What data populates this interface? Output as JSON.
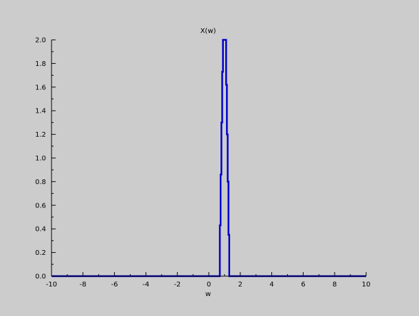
{
  "chart_data": {
    "type": "line",
    "title": "X(w)",
    "xlabel": "w",
    "ylabel": "",
    "xlim": [
      -10,
      10
    ],
    "ylim": [
      0,
      2
    ],
    "x_ticks": [
      "-10",
      "-8",
      "-6",
      "-4",
      "-2",
      "0",
      "2",
      "4",
      "6",
      "8",
      "10"
    ],
    "y_ticks": [
      "0.0",
      "0.2",
      "0.4",
      "0.6",
      "0.8",
      "1.0",
      "1.2",
      "1.4",
      "1.6",
      "1.8",
      "2.0"
    ],
    "grid": false,
    "legend": "none",
    "series": [
      {
        "color": "#0000cc",
        "x": [
          -10,
          0.7,
          0.7,
          0.75,
          0.75,
          0.8,
          0.8,
          0.85,
          0.85,
          0.9,
          0.9,
          0.95,
          0.95,
          1.0,
          1.0,
          1.1,
          1.1,
          1.15,
          1.15,
          1.2,
          1.2,
          1.25,
          1.25,
          1.3,
          1.3,
          10
        ],
        "y": [
          0,
          0,
          0.43,
          0.43,
          0.86,
          0.86,
          1.3,
          1.3,
          1.73,
          1.73,
          2.0,
          2.0,
          2.0,
          2.0,
          2.0,
          2.0,
          1.62,
          1.62,
          1.2,
          1.2,
          0.8,
          0.8,
          0.35,
          0.35,
          0,
          0
        ]
      }
    ]
  }
}
